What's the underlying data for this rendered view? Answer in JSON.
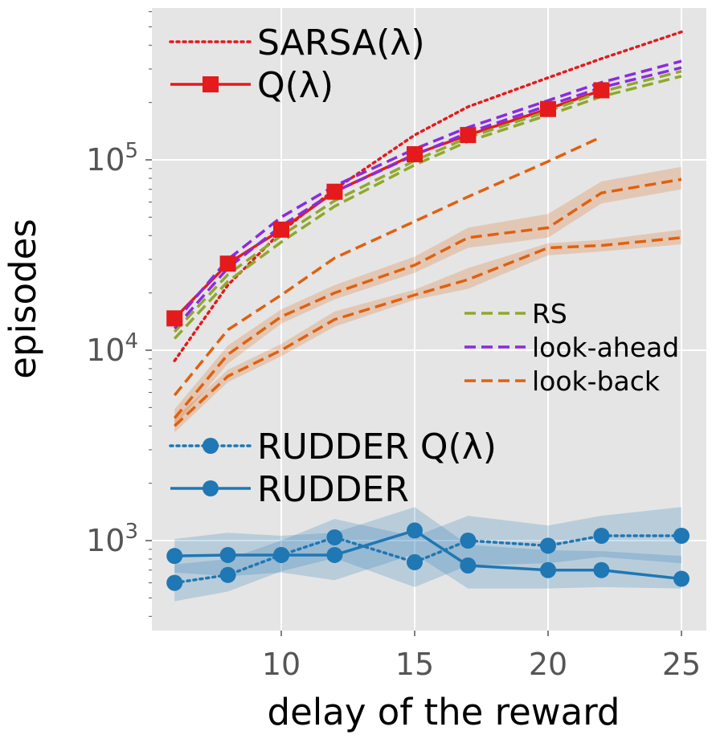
{
  "chart_data": {
    "type": "line",
    "title": "",
    "xlabel": "delay of the reward",
    "ylabel": "episodes",
    "yscale": "log",
    "xlim": [
      5.5,
      26.5
    ],
    "ylim": [
      330,
      800000
    ],
    "grid": true,
    "style": "ggplot-like grey background with white grid",
    "xticks": [
      10,
      15,
      20,
      25
    ],
    "xtick_labels": [
      "10",
      "15",
      "20",
      "25"
    ],
    "yticks": [
      {
        "value": 1000,
        "base": "10",
        "exp": "3"
      },
      {
        "value": 10000,
        "base": "10",
        "exp": "4"
      },
      {
        "value": 100000,
        "base": "10",
        "exp": "5"
      }
    ],
    "series": [
      {
        "name": "SARSA(λ)",
        "color": "#e41a1c",
        "style": "dotted",
        "marker": "none",
        "x": [
          6,
          8,
          10,
          12,
          15,
          17,
          20,
          22,
          25
        ],
        "y": [
          8800,
          22000,
          42000,
          70000,
          135000,
          190000,
          270000,
          340000,
          470000
        ]
      },
      {
        "name": "Q(λ)",
        "color": "#e41a1c",
        "style": "solid",
        "marker": "square",
        "x": [
          6,
          8,
          10,
          12,
          15,
          17,
          20,
          22
        ],
        "y": [
          14700,
          28500,
          43000,
          68000,
          107000,
          135000,
          185000,
          232000
        ]
      },
      {
        "name": "RS",
        "color": "#8fa82c",
        "style": "dashed",
        "marker": "none",
        "x": [
          6,
          8,
          10,
          12,
          15,
          17,
          20,
          22,
          25
        ],
        "y": [
          11500,
          23000,
          37000,
          57000,
          94000,
          125000,
          172000,
          215000,
          275000
        ]
      },
      {
        "name": "",
        "color": "#8fa82c",
        "style": "dashed",
        "marker": "none",
        "x": [
          6,
          8,
          10,
          12,
          15,
          17,
          20,
          22,
          25
        ],
        "y": [
          12500,
          25000,
          40000,
          61000,
          99000,
          131000,
          180000,
          228000,
          292000
        ]
      },
      {
        "name": "look-ahead",
        "color": "#8a2be2",
        "style": "dashed",
        "marker": "none",
        "x": [
          6,
          8,
          10,
          12,
          15,
          17,
          20,
          22,
          25
        ],
        "y": [
          14000,
          30000,
          50000,
          73000,
          114000,
          148000,
          205000,
          255000,
          330000
        ]
      },
      {
        "name": "",
        "color": "#8a2be2",
        "style": "dashed",
        "marker": "none",
        "x": [
          6,
          8,
          10,
          12,
          15,
          17,
          20,
          22,
          25
        ],
        "y": [
          13000,
          27000,
          45000,
          68000,
          106000,
          139000,
          193000,
          240000,
          305000
        ]
      },
      {
        "name": "look-back",
        "color": "#e0600f",
        "style": "dashed",
        "marker": "none",
        "x": [
          6,
          8,
          10,
          12,
          15,
          17,
          20,
          22
        ],
        "y": [
          5800,
          12800,
          19500,
          30500,
          47500,
          64000,
          98000,
          132000
        ]
      },
      {
        "name": "",
        "color": "#e0600f",
        "style": "dashed",
        "marker": "none",
        "x": [
          6,
          8,
          10,
          12,
          15,
          17,
          20,
          22,
          25
        ],
        "y": [
          4400,
          9500,
          15000,
          20000,
          28000,
          39000,
          44000,
          67000,
          79000
        ],
        "band_low": [
          4000,
          8500,
          13800,
          18500,
          25500,
          34500,
          39000,
          59000,
          70000
        ],
        "band_high": [
          4900,
          10600,
          16400,
          22000,
          31000,
          44000,
          52000,
          77000,
          92000
        ]
      },
      {
        "name": "",
        "color": "#e0600f",
        "style": "dashed",
        "marker": "none",
        "x": [
          6,
          8,
          10,
          12,
          15,
          17,
          20,
          22,
          25
        ],
        "y": [
          4000,
          7300,
          10000,
          14500,
          19500,
          23500,
          34500,
          35500,
          39000
        ],
        "band_low": [
          3700,
          6800,
          9300,
          13300,
          18400,
          21000,
          31500,
          33000,
          36000
        ],
        "band_high": [
          4400,
          7900,
          10800,
          16000,
          20800,
          27000,
          36500,
          38000,
          43000
        ]
      },
      {
        "name": "RUDDER Q(λ)",
        "color": "#1f77b4",
        "style": "dotted",
        "marker": "circle",
        "x": [
          6,
          8,
          10,
          12,
          15,
          17,
          20,
          22,
          25
        ],
        "y": [
          600,
          660,
          840,
          1040,
          770,
          1000,
          940,
          1060,
          1060
        ],
        "band_low": [
          480,
          540,
          690,
          810,
          570,
          740,
          760,
          820,
          760
        ],
        "band_high": [
          750,
          800,
          1000,
          1300,
          1050,
          1350,
          1200,
          1350,
          1500
        ]
      },
      {
        "name": "RUDDER",
        "color": "#1f77b4",
        "style": "solid",
        "marker": "circle",
        "x": [
          6,
          8,
          10,
          12,
          15,
          17,
          20,
          22,
          25
        ],
        "y": [
          830,
          840,
          840,
          840,
          1130,
          740,
          700,
          700,
          630
        ],
        "band_low": [
          680,
          650,
          680,
          620,
          850,
          560,
          560,
          570,
          560
        ],
        "band_high": [
          1020,
          1100,
          1060,
          1100,
          1500,
          950,
          890,
          880,
          830
        ]
      }
    ],
    "legends": [
      {
        "placement": "top-left",
        "entries": [
          "SARSA(λ)",
          "Q(λ)"
        ]
      },
      {
        "placement": "center-right",
        "entries": [
          "RS",
          "look-ahead",
          "look-back"
        ]
      },
      {
        "placement": "bottom-left",
        "entries": [
          "RUDDER Q(λ)",
          "RUDDER"
        ]
      }
    ]
  }
}
